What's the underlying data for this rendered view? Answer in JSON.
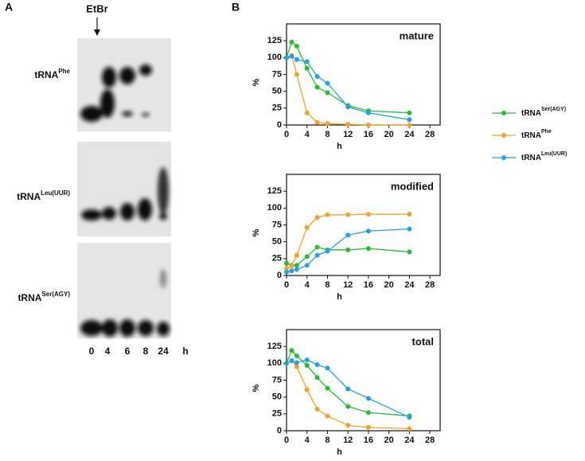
{
  "panel_labels": [
    "A",
    "B"
  ],
  "gel": {
    "marker": "EtBr",
    "rows": [
      [
        "tRNA",
        "Phe"
      ],
      [
        "tRNA",
        "Leu(UUR)"
      ],
      [
        "tRNA",
        "Ser(AGY)"
      ]
    ],
    "lanes": [
      "0",
      "4",
      "6",
      "8",
      "24"
    ],
    "lane_unit": "h"
  },
  "chart_data": [
    {
      "type": "line",
      "title": "mature",
      "x_label": "h",
      "y_label": "%",
      "x": [
        0,
        1,
        2,
        4,
        6,
        8,
        12,
        16,
        24
      ],
      "xlim": [
        0,
        30
      ],
      "xticks": [
        0,
        4,
        8,
        12,
        16,
        20,
        24,
        28
      ],
      "ylim": [
        0,
        150
      ],
      "yticks": [
        0,
        25,
        50,
        75,
        100,
        125
      ],
      "grid": false,
      "series": [
        {
          "name": [
            "tRNA",
            "Ser(AGY)"
          ],
          "color": "#22c02a",
          "values": [
            100,
            123,
            117,
            84,
            56,
            48,
            29,
            21,
            18
          ]
        },
        {
          "name": [
            "tRNA",
            "Phe"
          ],
          "color": "#f5a21f",
          "values": [
            100,
            103,
            75,
            18,
            4,
            2,
            1,
            0,
            0
          ]
        },
        {
          "name": [
            "tRNA",
            "Leu(UUR)"
          ],
          "color": "#1fa2e8",
          "values": [
            100,
            102,
            97,
            94,
            72,
            62,
            27,
            18,
            8
          ]
        }
      ]
    },
    {
      "type": "line",
      "title": "modified",
      "x_label": "h",
      "y_label": "%",
      "x": [
        0,
        1,
        2,
        4,
        6,
        8,
        12,
        16,
        24
      ],
      "xlim": [
        0,
        30
      ],
      "xticks": [
        0,
        4,
        8,
        12,
        16,
        20,
        24,
        28
      ],
      "ylim": [
        0,
        150
      ],
      "yticks": [
        0,
        25,
        50,
        75,
        100,
        125
      ],
      "grid": false,
      "series": [
        {
          "name": [
            "tRNA",
            "Ser(AGY)"
          ],
          "color": "#22c02a",
          "values": [
            18,
            15,
            15,
            28,
            42,
            38,
            38,
            40,
            35
          ]
        },
        {
          "name": [
            "tRNA",
            "Phe"
          ],
          "color": "#f5a21f",
          "values": [
            10,
            14,
            30,
            71,
            86,
            90,
            90,
            91,
            91
          ]
        },
        {
          "name": [
            "tRNA",
            "Leu(UUR)"
          ],
          "color": "#1fa2e8",
          "values": [
            5,
            7,
            9,
            15,
            30,
            36,
            60,
            66,
            69
          ]
        }
      ]
    },
    {
      "type": "line",
      "title": "total",
      "x_label": "h",
      "y_label": "%",
      "x": [
        0,
        1,
        2,
        4,
        6,
        8,
        12,
        16,
        24
      ],
      "xlim": [
        0,
        30
      ],
      "xticks": [
        0,
        4,
        8,
        12,
        16,
        20,
        24,
        28
      ],
      "ylim": [
        0,
        150
      ],
      "yticks": [
        0,
        25,
        50,
        75,
        100,
        125
      ],
      "grid": false,
      "series": [
        {
          "name": [
            "tRNA",
            "Ser(AGY)"
          ],
          "color": "#22c02a",
          "values": [
            100,
            119,
            111,
            97,
            79,
            63,
            36,
            27,
            22
          ]
        },
        {
          "name": [
            "tRNA",
            "Phe"
          ],
          "color": "#f5a21f",
          "values": [
            100,
            104,
            95,
            61,
            32,
            22,
            8,
            5,
            3
          ]
        },
        {
          "name": [
            "tRNA",
            "Leu(UUR)"
          ],
          "color": "#1fa2e8",
          "values": [
            100,
            104,
            101,
            105,
            98,
            93,
            62,
            48,
            20
          ]
        }
      ]
    }
  ]
}
